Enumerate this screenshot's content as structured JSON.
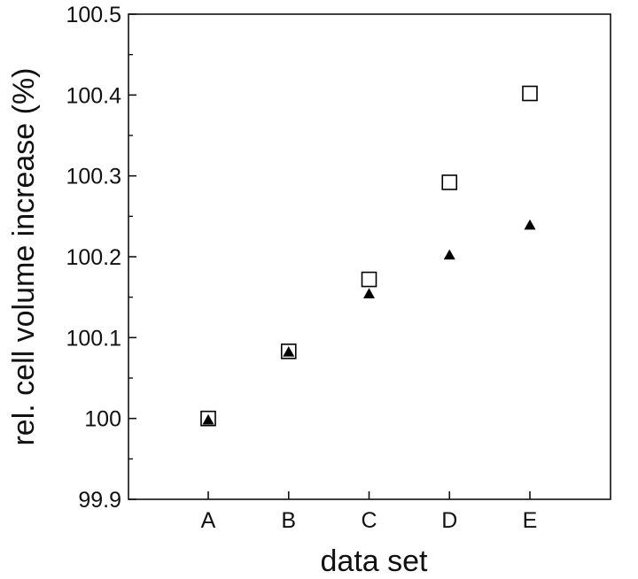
{
  "chart_data": {
    "type": "scatter",
    "xlabel": "data set",
    "ylabel": "rel. cell volume increase (%)",
    "categories": [
      "A",
      "B",
      "C",
      "D",
      "E"
    ],
    "ylim": [
      99.9,
      100.5
    ],
    "yticks": [
      99.9,
      100,
      100.1,
      100.2,
      100.3,
      100.4,
      100.5
    ],
    "ytick_labels": [
      "99.9",
      "100",
      "100.1",
      "100.2",
      "100.3",
      "100.4",
      "100.5"
    ],
    "grid": false,
    "legend": "none",
    "series": [
      {
        "marker": "open-square",
        "color": "#000000",
        "values": [
          100.0,
          100.083,
          100.172,
          100.292,
          100.402
        ]
      },
      {
        "marker": "filled-triangle",
        "color": "#000000",
        "values": [
          99.998,
          100.082,
          100.154,
          100.202,
          100.239
        ]
      }
    ]
  }
}
